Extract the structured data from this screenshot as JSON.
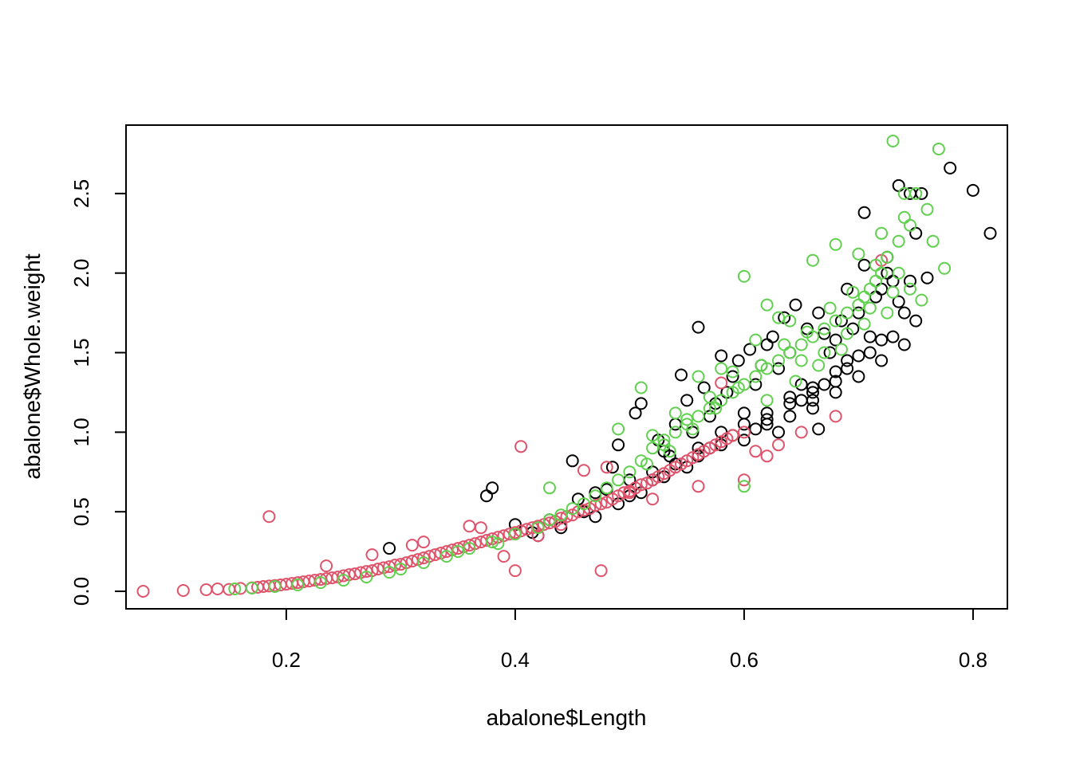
{
  "chart_data": {
    "type": "scatter",
    "title": "",
    "xlabel": "abalone$Length",
    "ylabel": "abalone$Whole.weight",
    "xlim": [
      0.06,
      0.83
    ],
    "ylim": [
      -0.11,
      2.93
    ],
    "x_ticks": [
      {
        "value": 0.2,
        "label": "0.2"
      },
      {
        "value": 0.4,
        "label": "0.4"
      },
      {
        "value": 0.6,
        "label": "0.6"
      },
      {
        "value": 0.8,
        "label": "0.8"
      }
    ],
    "y_ticks": [
      {
        "value": 0.0,
        "label": "0.0"
      },
      {
        "value": 0.5,
        "label": "0.5"
      },
      {
        "value": 1.0,
        "label": "1.0"
      },
      {
        "value": 1.5,
        "label": "1.5"
      },
      {
        "value": 2.0,
        "label": "2.0"
      },
      {
        "value": 2.5,
        "label": "2.5"
      }
    ],
    "grid": false,
    "legend": "none",
    "marker": "open-circle",
    "series": [
      {
        "color": "#000000",
        "x": [
          0.29,
          0.375,
          0.38,
          0.4,
          0.415,
          0.43,
          0.45,
          0.455,
          0.46,
          0.47,
          0.48,
          0.485,
          0.49,
          0.5,
          0.505,
          0.51,
          0.52,
          0.525,
          0.53,
          0.535,
          0.54,
          0.545,
          0.55,
          0.555,
          0.56,
          0.565,
          0.57,
          0.575,
          0.58,
          0.585,
          0.59,
          0.595,
          0.6,
          0.605,
          0.61,
          0.615,
          0.62,
          0.625,
          0.63,
          0.635,
          0.64,
          0.645,
          0.65,
          0.655,
          0.66,
          0.665,
          0.67,
          0.675,
          0.68,
          0.685,
          0.69,
          0.695,
          0.7,
          0.705,
          0.71,
          0.715,
          0.72,
          0.725,
          0.73,
          0.735,
          0.74,
          0.745,
          0.75,
          0.755,
          0.76,
          0.78,
          0.8,
          0.815,
          0.6,
          0.62,
          0.64,
          0.66,
          0.68,
          0.7,
          0.72,
          0.74,
          0.65,
          0.63,
          0.57,
          0.59,
          0.61,
          0.67,
          0.69,
          0.71,
          0.73,
          0.75,
          0.56,
          0.58,
          0.62,
          0.64,
          0.66,
          0.68,
          0.7,
          0.72,
          0.735,
          0.745,
          0.725,
          0.705,
          0.69,
          0.665,
          0.55,
          0.53,
          0.51,
          0.49,
          0.47,
          0.44,
          0.42,
          0.5,
          0.52,
          0.54,
          0.56,
          0.58,
          0.6,
          0.62,
          0.64,
          0.66,
          0.68
        ],
        "y": [
          0.27,
          0.6,
          0.65,
          0.42,
          0.37,
          0.45,
          0.82,
          0.58,
          0.5,
          0.62,
          0.64,
          0.78,
          0.92,
          0.7,
          1.12,
          1.18,
          0.75,
          0.95,
          0.88,
          0.85,
          1.05,
          1.36,
          1.2,
          1.0,
          1.66,
          1.28,
          1.1,
          1.18,
          1.48,
          1.25,
          1.35,
          1.45,
          1.12,
          1.52,
          1.3,
          1.42,
          1.55,
          1.6,
          1.4,
          1.72,
          1.5,
          1.8,
          1.3,
          1.65,
          1.2,
          1.75,
          1.62,
          1.5,
          1.58,
          1.7,
          1.9,
          1.65,
          1.75,
          2.38,
          1.6,
          1.85,
          1.9,
          2.1,
          1.95,
          2.55,
          1.75,
          2.5,
          2.25,
          2.5,
          1.97,
          2.66,
          2.52,
          2.25,
          0.95,
          1.05,
          1.1,
          1.15,
          1.25,
          1.35,
          1.45,
          1.55,
          1.2,
          1.0,
          0.9,
          0.98,
          1.02,
          1.3,
          1.4,
          1.5,
          1.6,
          1.7,
          0.85,
          0.92,
          1.08,
          1.22,
          1.28,
          1.38,
          1.48,
          1.58,
          1.82,
          1.95,
          2.0,
          2.05,
          1.45,
          1.02,
          0.78,
          0.72,
          0.62,
          0.55,
          0.47,
          0.4,
          0.35,
          0.6,
          0.7,
          0.8,
          0.9,
          1.0,
          1.05,
          1.12,
          1.18,
          1.25,
          1.32
        ]
      },
      {
        "color": "#DF536B",
        "x": [
          0.075,
          0.11,
          0.13,
          0.14,
          0.15,
          0.16,
          0.17,
          0.175,
          0.18,
          0.185,
          0.19,
          0.195,
          0.2,
          0.205,
          0.21,
          0.215,
          0.22,
          0.225,
          0.23,
          0.235,
          0.24,
          0.245,
          0.25,
          0.255,
          0.26,
          0.265,
          0.27,
          0.275,
          0.28,
          0.285,
          0.29,
          0.295,
          0.3,
          0.305,
          0.31,
          0.315,
          0.32,
          0.325,
          0.33,
          0.335,
          0.34,
          0.345,
          0.35,
          0.355,
          0.36,
          0.365,
          0.37,
          0.375,
          0.38,
          0.385,
          0.39,
          0.395,
          0.4,
          0.405,
          0.41,
          0.415,
          0.42,
          0.425,
          0.43,
          0.435,
          0.44,
          0.445,
          0.45,
          0.455,
          0.46,
          0.465,
          0.47,
          0.475,
          0.48,
          0.485,
          0.49,
          0.495,
          0.5,
          0.505,
          0.51,
          0.515,
          0.52,
          0.525,
          0.53,
          0.535,
          0.54,
          0.545,
          0.55,
          0.555,
          0.56,
          0.565,
          0.57,
          0.575,
          0.58,
          0.585,
          0.59,
          0.6,
          0.61,
          0.62,
          0.63,
          0.65,
          0.68,
          0.72,
          0.185,
          0.235,
          0.275,
          0.31,
          0.32,
          0.36,
          0.37,
          0.4,
          0.405,
          0.475,
          0.58,
          0.56,
          0.52,
          0.6,
          0.44,
          0.46,
          0.48,
          0.5,
          0.42,
          0.39
        ],
        "y": [
          0.0,
          0.005,
          0.01,
          0.015,
          0.012,
          0.018,
          0.022,
          0.025,
          0.03,
          0.033,
          0.036,
          0.04,
          0.045,
          0.05,
          0.055,
          0.06,
          0.065,
          0.07,
          0.075,
          0.08,
          0.085,
          0.09,
          0.098,
          0.105,
          0.11,
          0.118,
          0.125,
          0.13,
          0.14,
          0.148,
          0.155,
          0.165,
          0.17,
          0.18,
          0.19,
          0.2,
          0.21,
          0.22,
          0.23,
          0.24,
          0.25,
          0.26,
          0.27,
          0.28,
          0.29,
          0.3,
          0.31,
          0.32,
          0.33,
          0.34,
          0.35,
          0.36,
          0.37,
          0.38,
          0.39,
          0.4,
          0.41,
          0.42,
          0.43,
          0.44,
          0.46,
          0.47,
          0.48,
          0.5,
          0.51,
          0.52,
          0.54,
          0.55,
          0.56,
          0.58,
          0.6,
          0.62,
          0.63,
          0.65,
          0.67,
          0.68,
          0.7,
          0.72,
          0.74,
          0.76,
          0.78,
          0.8,
          0.82,
          0.84,
          0.86,
          0.88,
          0.9,
          0.92,
          0.94,
          0.96,
          0.98,
          1.0,
          0.88,
          0.85,
          0.92,
          1.0,
          1.1,
          2.08,
          0.47,
          0.16,
          0.23,
          0.29,
          0.31,
          0.41,
          0.4,
          0.13,
          0.91,
          0.13,
          1.31,
          0.66,
          0.58,
          0.7,
          0.42,
          0.76,
          0.78,
          0.62,
          0.35,
          0.22
        ]
      },
      {
        "color": "#61D04F",
        "x": [
          0.155,
          0.17,
          0.19,
          0.21,
          0.23,
          0.25,
          0.27,
          0.29,
          0.3,
          0.32,
          0.34,
          0.35,
          0.36,
          0.38,
          0.4,
          0.42,
          0.43,
          0.44,
          0.45,
          0.46,
          0.47,
          0.48,
          0.49,
          0.5,
          0.51,
          0.52,
          0.53,
          0.54,
          0.55,
          0.56,
          0.57,
          0.58,
          0.59,
          0.6,
          0.61,
          0.62,
          0.63,
          0.64,
          0.65,
          0.66,
          0.67,
          0.68,
          0.69,
          0.7,
          0.705,
          0.71,
          0.715,
          0.72,
          0.725,
          0.73,
          0.735,
          0.74,
          0.745,
          0.75,
          0.755,
          0.76,
          0.765,
          0.77,
          0.775,
          0.385,
          0.43,
          0.49,
          0.51,
          0.53,
          0.55,
          0.6,
          0.62,
          0.64,
          0.66,
          0.68,
          0.7,
          0.72,
          0.74,
          0.57,
          0.59,
          0.61,
          0.63,
          0.65,
          0.67,
          0.69,
          0.71,
          0.73,
          0.52,
          0.54,
          0.56,
          0.58,
          0.6,
          0.62,
          0.645,
          0.665,
          0.685,
          0.705,
          0.725,
          0.745,
          0.735,
          0.715,
          0.695,
          0.675,
          0.655,
          0.635,
          0.615,
          0.595,
          0.575,
          0.555,
          0.535,
          0.515
        ],
        "y": [
          0.015,
          0.02,
          0.03,
          0.04,
          0.055,
          0.07,
          0.09,
          0.12,
          0.14,
          0.18,
          0.22,
          0.25,
          0.27,
          0.31,
          0.36,
          0.4,
          0.45,
          0.48,
          0.52,
          0.55,
          0.6,
          0.65,
          0.7,
          0.75,
          0.82,
          0.9,
          0.95,
          1.0,
          1.05,
          1.1,
          1.15,
          1.2,
          1.25,
          1.3,
          1.35,
          1.4,
          1.45,
          1.5,
          1.55,
          1.6,
          1.65,
          1.7,
          1.75,
          1.8,
          1.85,
          1.9,
          1.95,
          2.0,
          2.1,
          2.83,
          2.2,
          2.35,
          2.3,
          2.5,
          1.83,
          2.4,
          2.2,
          2.78,
          2.03,
          0.3,
          0.65,
          1.02,
          1.28,
          0.92,
          1.08,
          1.98,
          1.8,
          1.7,
          2.08,
          2.18,
          2.12,
          2.25,
          2.5,
          1.22,
          1.38,
          1.58,
          1.72,
          1.45,
          1.5,
          1.62,
          1.78,
          1.88,
          0.98,
          1.12,
          1.35,
          1.4,
          0.66,
          1.2,
          1.32,
          1.42,
          1.52,
          1.68,
          1.75,
          1.9,
          2.0,
          2.05,
          1.88,
          1.78,
          1.63,
          1.55,
          1.42,
          1.28,
          1.15,
          1.02,
          0.88,
          0.8
        ]
      }
    ]
  }
}
